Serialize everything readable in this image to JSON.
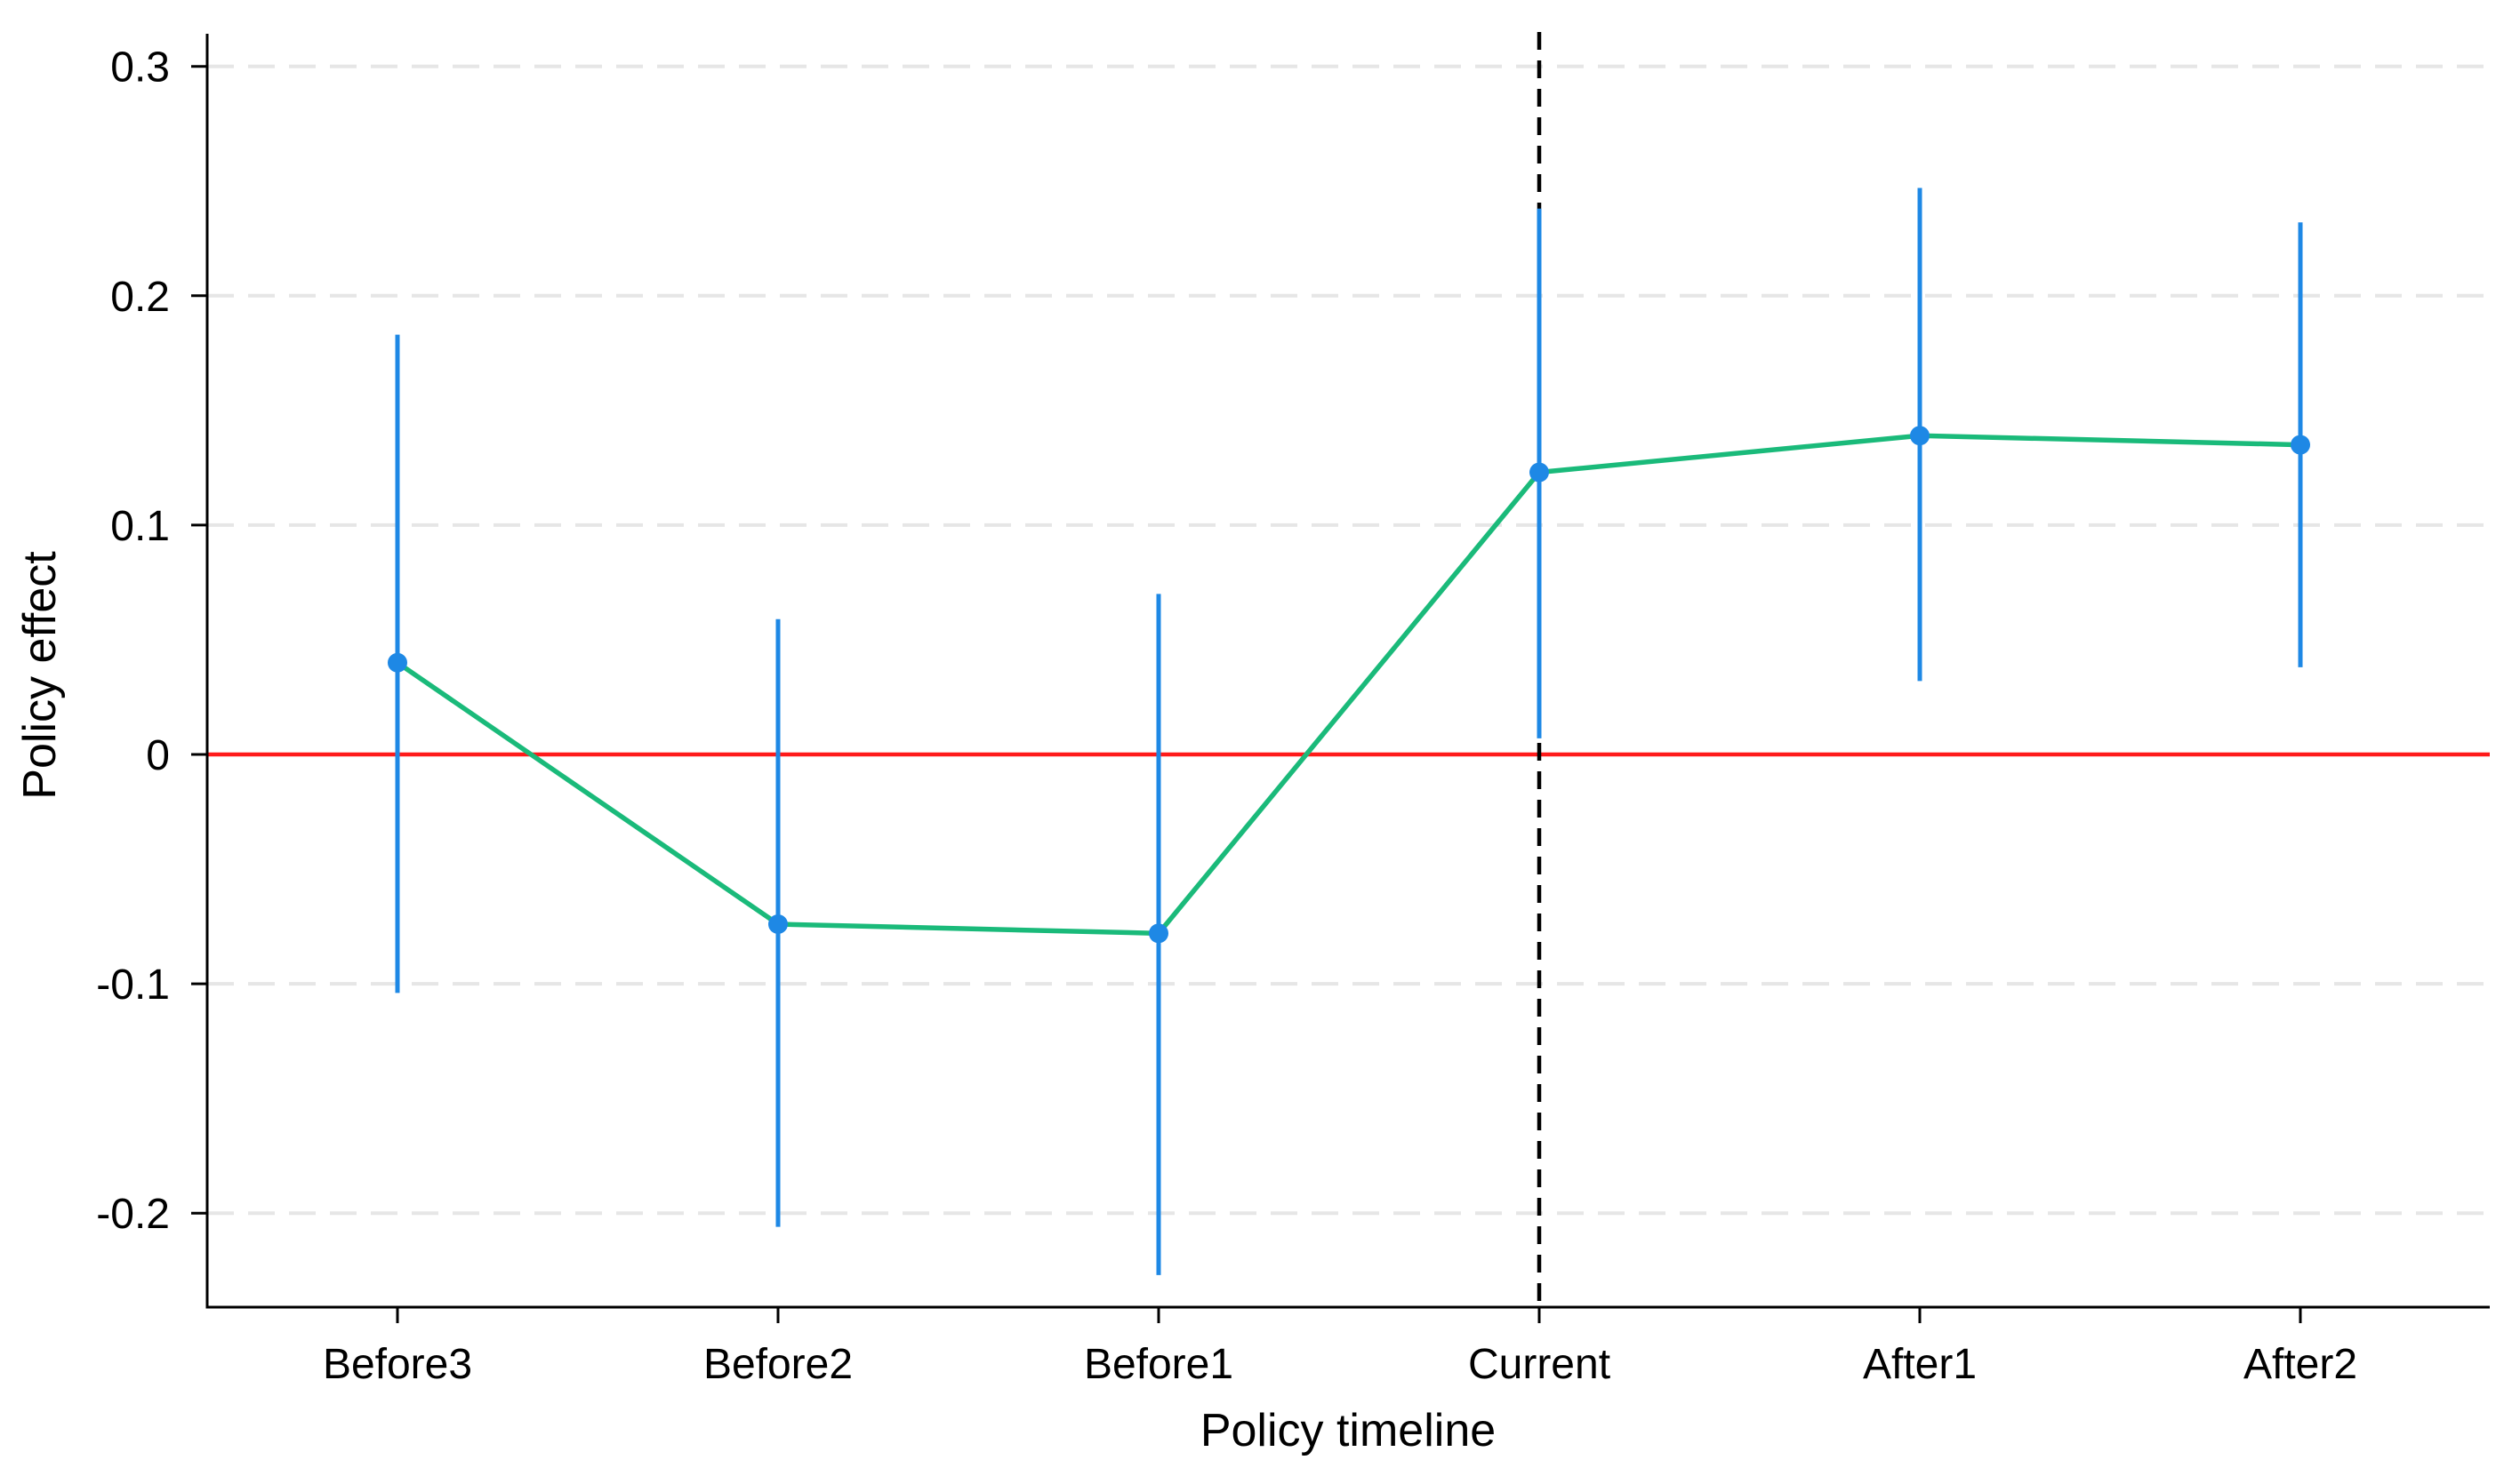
{
  "chart_data": {
    "type": "line",
    "title": "",
    "xlabel": "Policy timeline",
    "ylabel": "Policy effect",
    "categories": [
      "Before3",
      "Before2",
      "Before1",
      "Current",
      "After1",
      "After2"
    ],
    "series": [
      {
        "values": [
          0.04,
          -0.074,
          -0.078,
          0.123,
          0.139,
          0.135
        ],
        "ci_lower": [
          -0.104,
          -0.206,
          -0.227,
          0.007,
          0.032,
          0.038
        ],
        "ci_upper": [
          0.183,
          0.059,
          0.07,
          0.238,
          0.247,
          0.232
        ],
        "line_color": "#1aba7a",
        "marker_color": "#1e88e5",
        "ci_color": "#1e88e5"
      }
    ],
    "ylim": [
      -0.24,
      0.32
    ],
    "yticks": [
      {
        "value": 0.3,
        "label": "0.3"
      },
      {
        "value": 0.2,
        "label": "0.2"
      },
      {
        "value": 0.1,
        "label": "0.1"
      },
      {
        "value": 0,
        "label": "0"
      },
      {
        "value": -0.1,
        "label": "-0.1"
      },
      {
        "value": -0.2,
        "label": "-0.2"
      }
    ],
    "grid": "horizontal-dashed",
    "reference_line": {
      "y": 0,
      "color": "#ff1a1a"
    },
    "event_line": {
      "category": "Current",
      "style": "dashed",
      "color": "#000000"
    },
    "legend": "none"
  }
}
